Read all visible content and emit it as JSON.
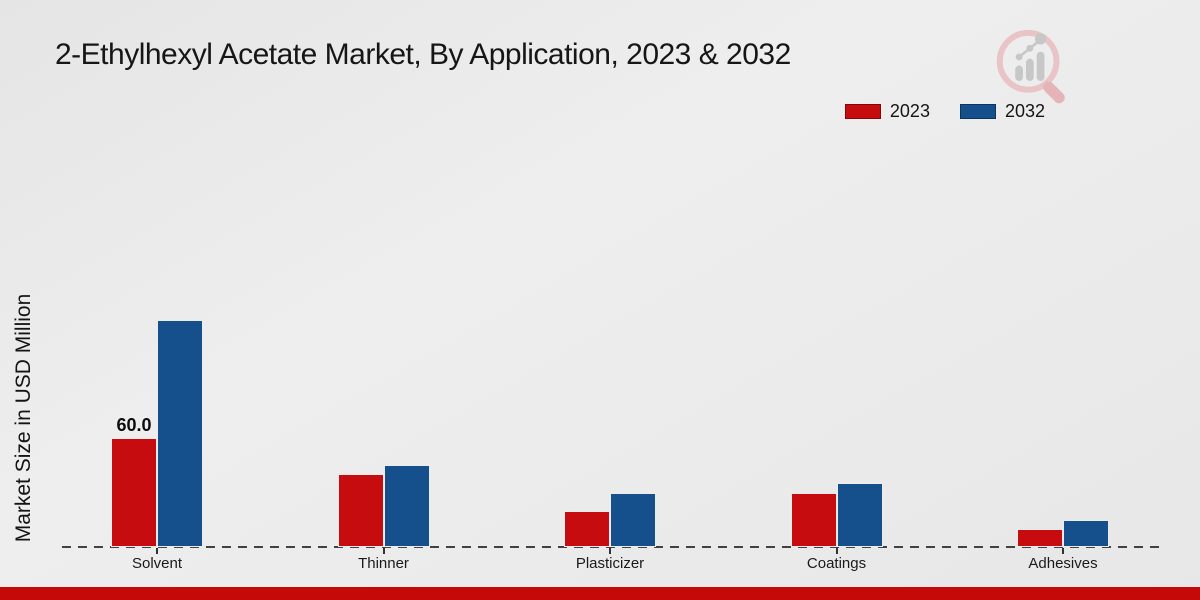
{
  "header": {
    "title": "2-Ethylhexyl Acetate Market, By Application, 2023 & 2032"
  },
  "logo": {
    "icon": "magnifier-bar-chart-logo"
  },
  "colors": {
    "series_2023": "#c60c0e",
    "series_2032": "#15508c",
    "footer": "#c50808",
    "background": "#eaeaea"
  },
  "chart_data": {
    "type": "bar",
    "title": "2-Ethylhexyl Acetate Market, By Application, 2023 & 2032",
    "xlabel": "",
    "ylabel": "Market Size in USD Million",
    "categories": [
      "Solvent",
      "Thinner",
      "Plasticizer",
      "Coatings",
      "Adhesives"
    ],
    "series": [
      {
        "name": "2023",
        "color": "#c60c0e",
        "values": [
          60.0,
          40,
          20,
          30,
          10
        ]
      },
      {
        "name": "2032",
        "color": "#15508c",
        "values": [
          125,
          45,
          30,
          35,
          15
        ]
      }
    ],
    "value_labels": [
      {
        "series": "2023",
        "category": "Solvent",
        "text": "60.0"
      }
    ],
    "legend_position": "top-right",
    "grid": false,
    "x_axis_style": "dashed-baseline",
    "y_axis_ticks": "none"
  }
}
